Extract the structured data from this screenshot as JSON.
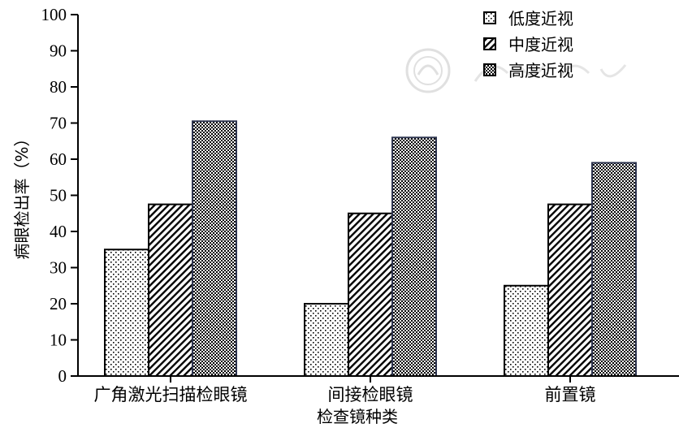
{
  "chart_data": {
    "type": "bar",
    "title": "",
    "xlabel": "检查镜种类",
    "ylabel": "病眼检出率（%）",
    "ylim": [
      0,
      100
    ],
    "yticks": [
      0,
      10,
      20,
      30,
      40,
      50,
      60,
      70,
      80,
      90,
      100
    ],
    "categories": [
      "广角激光扫描检眼镜",
      "间接检眼镜",
      "前置镜"
    ],
    "series": [
      {
        "name": "低度近视",
        "values": [
          35,
          20,
          25
        ],
        "pattern": "dots"
      },
      {
        "name": "中度近视",
        "values": [
          47.5,
          45,
          47.5
        ],
        "pattern": "hatch"
      },
      {
        "name": "高度近视",
        "values": [
          70.5,
          66,
          59
        ],
        "pattern": "checker"
      }
    ],
    "grid": false,
    "legend_position": "top-right"
  }
}
